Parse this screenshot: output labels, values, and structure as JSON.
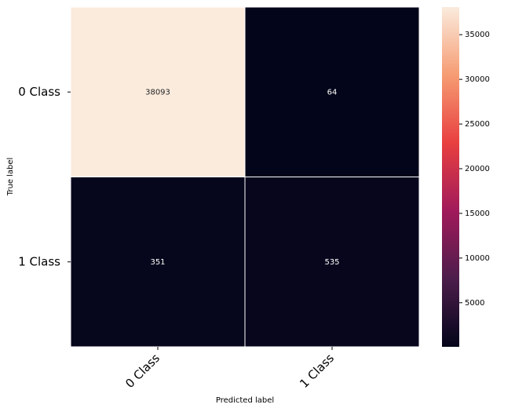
{
  "chart_data": {
    "type": "heatmap",
    "x_label": "Predicted label",
    "y_label": "True label",
    "x_categories": [
      "0 Class",
      "1 Class"
    ],
    "y_categories": [
      "0 Class",
      "1 Class"
    ],
    "values": [
      [
        38093,
        64
      ],
      [
        351,
        535
      ]
    ],
    "colormap": "rocket",
    "colors": [
      "#03051a",
      "#4c1d4b",
      "#a11a5b",
      "#e83f3f",
      "#f69c73",
      "#faebdd"
    ],
    "clim": [
      64,
      38093
    ],
    "colorbar_ticks": [
      5000,
      10000,
      15000,
      20000,
      25000,
      30000,
      35000
    ]
  }
}
